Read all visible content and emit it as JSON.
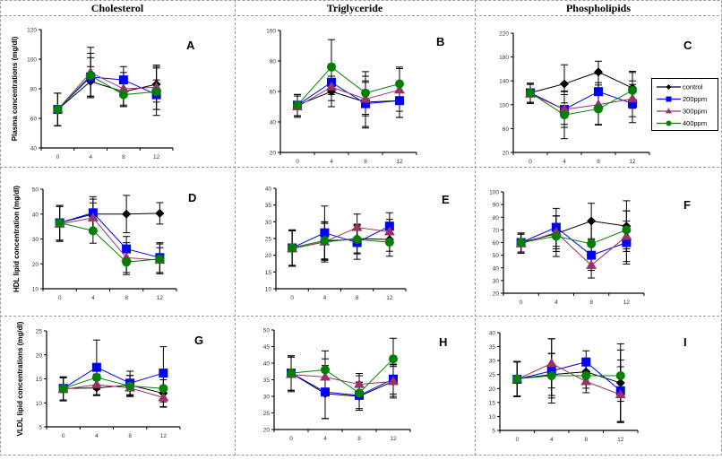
{
  "columns": [
    "Cholesterol",
    "Triglyceride",
    "Phospholipids"
  ],
  "legend": {
    "entries": [
      {
        "name": "control",
        "color": "#000000",
        "marker": "diamond"
      },
      {
        "name": "200ppm",
        "color": "#0000ff",
        "marker": "square"
      },
      {
        "name": "300ppm",
        "color": "#993366",
        "marker": "triangle"
      },
      {
        "name": "400ppm",
        "color": "#008000",
        "marker": "circle"
      }
    ],
    "placement": "right of panel C"
  },
  "chart_data": [
    {
      "type": "line",
      "panel": "A",
      "title": "Cholesterol",
      "ylabel": "Plasma concentrations (mg/dl)",
      "xlabel": "",
      "x": [
        0,
        4,
        8,
        12
      ],
      "ylim": [
        40,
        120
      ],
      "yticks": [
        40,
        60,
        80,
        100,
        120
      ],
      "series": [
        {
          "name": "control",
          "values": [
            66,
            85,
            78,
            83
          ],
          "err": [
            11,
            10,
            10,
            12
          ]
        },
        {
          "name": "200ppm",
          "values": [
            66,
            88,
            86,
            76
          ],
          "err": [
            11,
            13,
            9,
            10
          ]
        },
        {
          "name": "300ppm",
          "values": [
            66,
            91,
            80,
            81
          ],
          "err": [
            11,
            17,
            11,
            15
          ]
        },
        {
          "name": "400ppm",
          "values": [
            66,
            89,
            76,
            78
          ],
          "err": [
            11,
            15,
            8,
            16
          ]
        }
      ]
    },
    {
      "type": "line",
      "panel": "B",
      "title": "Triglyceride",
      "ylabel": "",
      "xlabel": "",
      "x": [
        0,
        4,
        8,
        12
      ],
      "ylim": [
        20,
        100
      ],
      "yticks": [
        20,
        40,
        60,
        80,
        100
      ],
      "series": [
        {
          "name": "control",
          "values": [
            51,
            60,
            53,
            54
          ],
          "err": [
            7,
            10,
            17,
            11
          ]
        },
        {
          "name": "200ppm",
          "values": [
            51,
            66,
            52,
            54
          ],
          "err": [
            7,
            12,
            15,
            11
          ]
        },
        {
          "name": "300ppm",
          "values": [
            50,
            63,
            55,
            61
          ],
          "err": [
            7,
            13,
            11,
            14
          ]
        },
        {
          "name": "400ppm",
          "values": [
            51,
            76,
            59,
            65
          ],
          "err": [
            7,
            18,
            14,
            11
          ]
        }
      ]
    },
    {
      "type": "line",
      "panel": "C",
      "title": "Phospholipids",
      "ylabel": "",
      "xlabel": "",
      "x": [
        0,
        4,
        8,
        12
      ],
      "ylim": [
        20,
        220
      ],
      "yticks": [
        20,
        60,
        100,
        140,
        180,
        220
      ],
      "series": [
        {
          "name": "control",
          "values": [
            120,
            135,
            155,
            128
          ],
          "err": [
            16,
            32,
            18,
            28
          ]
        },
        {
          "name": "200ppm",
          "values": [
            120,
            92,
            122,
            102
          ],
          "err": [
            16,
            30,
            30,
            32
          ]
        },
        {
          "name": "300ppm",
          "values": [
            118,
            92,
            100,
            110
          ],
          "err": [
            16,
            25,
            33,
            30
          ]
        },
        {
          "name": "400ppm",
          "values": [
            120,
            83,
            93,
            124
          ],
          "err": [
            16,
            40,
            27,
            30
          ]
        }
      ]
    },
    {
      "type": "line",
      "panel": "D",
      "title": "",
      "ylabel": "HDL lipid concentration (mg/dl)",
      "xlabel": "",
      "x": [
        0,
        4,
        8,
        12
      ],
      "ylim": [
        10,
        50
      ],
      "yticks": [
        10,
        20,
        30,
        40,
        50
      ],
      "series": [
        {
          "name": "control",
          "values": [
            36.5,
            40,
            40,
            40.3
          ],
          "err": [
            7,
            6,
            7.5,
            4.3
          ]
        },
        {
          "name": "200ppm",
          "values": [
            36.5,
            40.5,
            26,
            22.5
          ],
          "err": [
            7,
            6.5,
            5,
            6
          ]
        },
        {
          "name": "300ppm",
          "values": [
            36,
            38.5,
            22.5,
            21.5
          ],
          "err": [
            7,
            6,
            6,
            5
          ]
        },
        {
          "name": "400ppm",
          "values": [
            36.5,
            33.3,
            20.7,
            22
          ],
          "err": [
            7,
            5,
            5,
            6
          ]
        }
      ]
    },
    {
      "type": "line",
      "panel": "E",
      "title": "",
      "ylabel": "",
      "xlabel": "",
      "x": [
        0,
        4,
        8,
        12
      ],
      "ylim": [
        10,
        40
      ],
      "yticks": [
        10,
        15,
        20,
        25,
        30,
        35,
        40
      ],
      "series": [
        {
          "name": "control",
          "values": [
            22,
            24,
            25,
            24.7
          ],
          "err": [
            5.3,
            5.5,
            4.3,
            3.5
          ]
        },
        {
          "name": "200ppm",
          "values": [
            22.2,
            26.7,
            23.8,
            28.7
          ],
          "err": [
            5.3,
            8,
            5,
            4
          ]
        },
        {
          "name": "300ppm",
          "values": [
            22,
            24,
            28.3,
            27
          ],
          "err": [
            5.3,
            6,
            4,
            3.7
          ]
        },
        {
          "name": "400ppm",
          "values": [
            22.3,
            24.4,
            24.7,
            23.9
          ],
          "err": [
            5.3,
            5.5,
            4.3,
            4.2
          ]
        }
      ]
    },
    {
      "type": "line",
      "panel": "F",
      "title": "",
      "ylabel": "",
      "xlabel": "",
      "x": [
        0,
        4,
        8,
        12
      ],
      "ylim": [
        20,
        100
      ],
      "yticks": [
        20,
        30,
        40,
        50,
        60,
        70,
        80,
        90,
        100
      ],
      "series": [
        {
          "name": "control",
          "values": [
            60,
            67,
            77,
            73
          ],
          "err": [
            7.5,
            14,
            14,
            20
          ]
        },
        {
          "name": "200ppm",
          "values": [
            60,
            72,
            50,
            60
          ],
          "err": [
            7.5,
            15,
            12,
            17
          ]
        },
        {
          "name": "300ppm",
          "values": [
            59,
            68,
            42,
            65
          ],
          "err": [
            7.5,
            13,
            10,
            20
          ]
        },
        {
          "name": "400ppm",
          "values": [
            60,
            65,
            59,
            70
          ],
          "err": [
            7.5,
            16,
            18,
            15
          ]
        }
      ]
    },
    {
      "type": "line",
      "panel": "G",
      "title": "",
      "ylabel": "VLDL lipid concentrations (mg/dl)",
      "xlabel": "",
      "x": [
        0,
        4,
        8,
        12
      ],
      "ylim": [
        5,
        25
      ],
      "yticks": [
        5,
        10,
        15,
        20,
        25
      ],
      "series": [
        {
          "name": "control",
          "values": [
            13,
            13.1,
            13.7,
            12
          ],
          "err": [
            2.4,
            1.6,
            2,
            2.8
          ]
        },
        {
          "name": "200ppm",
          "values": [
            13,
            17.4,
            14.1,
            16.2
          ],
          "err": [
            2.4,
            5.7,
            2.5,
            5.5
          ]
        },
        {
          "name": "300ppm",
          "values": [
            12.8,
            13.8,
            13.1,
            11.1
          ],
          "err": [
            2.4,
            2.2,
            1.7,
            2
          ]
        },
        {
          "name": "400ppm",
          "values": [
            13,
            15.3,
            13.5,
            13
          ],
          "err": [
            2.4,
            2.5,
            2.2,
            2.8
          ]
        }
      ]
    },
    {
      "type": "line",
      "panel": "H",
      "title": "",
      "ylabel": "",
      "xlabel": "",
      "x": [
        0,
        4,
        8,
        12
      ],
      "ylim": [
        20,
        50
      ],
      "yticks": [
        20,
        25,
        30,
        35,
        40,
        45,
        50
      ],
      "series": [
        {
          "name": "control",
          "values": [
            37,
            30.8,
            30,
            34.5
          ],
          "err": [
            5.2,
            7.5,
            4.2,
            5
          ]
        },
        {
          "name": "200ppm",
          "values": [
            37,
            31.3,
            30.3,
            35.2
          ],
          "err": [
            5.2,
            8,
            4,
            4.5
          ]
        },
        {
          "name": "300ppm",
          "values": [
            36.6,
            35.8,
            33.6,
            34.5
          ],
          "err": [
            5.2,
            5.5,
            3.3,
            4.5
          ]
        },
        {
          "name": "400ppm",
          "values": [
            37,
            38,
            31,
            41.3
          ],
          "err": [
            5.2,
            5.7,
            5.2,
            6.2
          ]
        }
      ]
    },
    {
      "type": "line",
      "panel": "I",
      "title": "",
      "ylabel": "",
      "xlabel": "",
      "x": [
        0,
        4,
        8,
        12
      ],
      "ylim": [
        5,
        40
      ],
      "yticks": [
        5,
        10,
        15,
        20,
        25,
        30,
        35,
        40
      ],
      "series": [
        {
          "name": "control",
          "values": [
            23.5,
            25,
            26,
            22
          ],
          "err": [
            6.2,
            7.5,
            4.5,
            14
          ]
        },
        {
          "name": "200ppm",
          "values": [
            23.3,
            26.3,
            29.5,
            19.2
          ],
          "err": [
            6.2,
            11.5,
            4,
            11
          ]
        },
        {
          "name": "300ppm",
          "values": [
            23.3,
            29,
            22.5,
            17.8
          ],
          "err": [
            6.2,
            8.8,
            4,
            10
          ]
        },
        {
          "name": "400ppm",
          "values": [
            23.5,
            24.6,
            24.6,
            24.6
          ],
          "err": [
            6.2,
            8,
            4.5,
            9.2
          ]
        }
      ]
    }
  ]
}
